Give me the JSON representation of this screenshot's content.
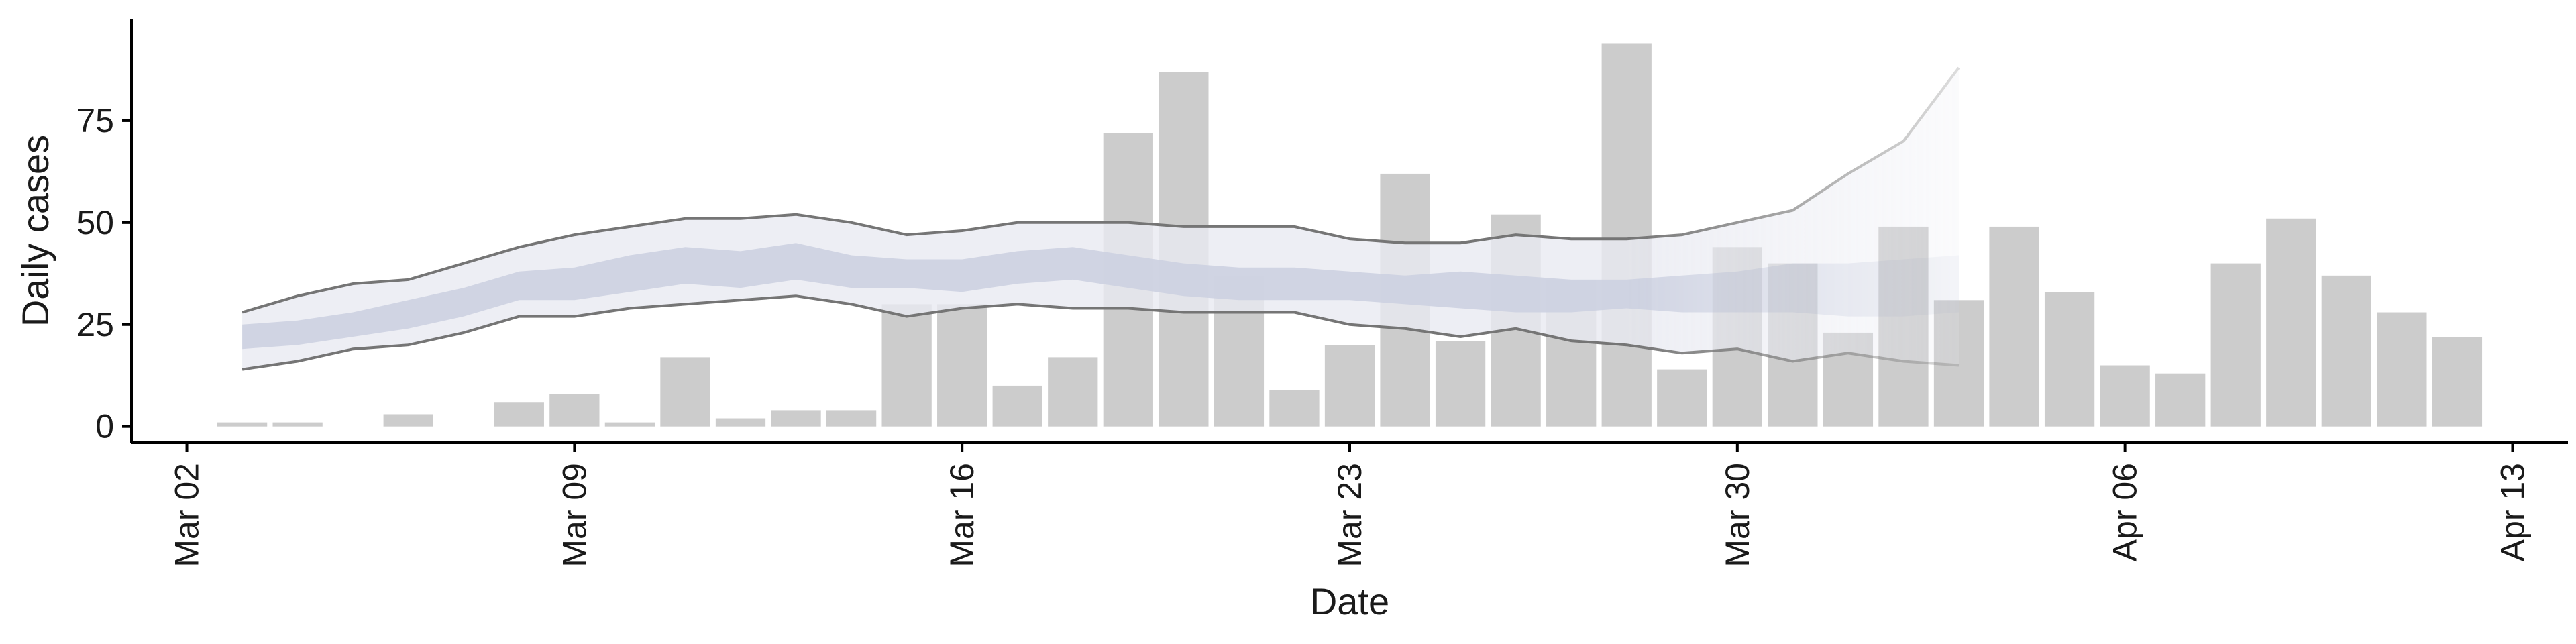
{
  "chart_data": {
    "type": "bar",
    "xlabel": "Date",
    "ylabel": "Daily cases",
    "x_ticks": [
      "Mar 02",
      "Mar 09",
      "Mar 16",
      "Mar 23",
      "Mar 30",
      "Apr 06",
      "Apr 13"
    ],
    "y_ticks": [
      0,
      25,
      50,
      75
    ],
    "ylim": [
      -4,
      100
    ],
    "xlim": [
      "2020-03-01",
      "2020-04-14"
    ],
    "grid": false,
    "legend": "none",
    "bars": {
      "dates": [
        "2020-03-03",
        "2020-03-04",
        "2020-03-05",
        "2020-03-06",
        "2020-03-07",
        "2020-03-08",
        "2020-03-09",
        "2020-03-10",
        "2020-03-11",
        "2020-03-12",
        "2020-03-13",
        "2020-03-14",
        "2020-03-15",
        "2020-03-16",
        "2020-03-17",
        "2020-03-18",
        "2020-03-19",
        "2020-03-20",
        "2020-03-21",
        "2020-03-22",
        "2020-03-23",
        "2020-03-24",
        "2020-03-25",
        "2020-03-26",
        "2020-03-27",
        "2020-03-28",
        "2020-03-29",
        "2020-03-30",
        "2020-03-31",
        "2020-04-01",
        "2020-04-02",
        "2020-04-03",
        "2020-04-04",
        "2020-04-05",
        "2020-04-06",
        "2020-04-07",
        "2020-04-08",
        "2020-04-09",
        "2020-04-10",
        "2020-04-11",
        "2020-04-12"
      ],
      "values": [
        1,
        1,
        0,
        3,
        0,
        6,
        8,
        1,
        17,
        2,
        4,
        4,
        30,
        30,
        10,
        17,
        72,
        87,
        37,
        9,
        20,
        62,
        21,
        52,
        36,
        94,
        14,
        44,
        40,
        23,
        49,
        31,
        49,
        33,
        15,
        13,
        40,
        51,
        37,
        28,
        22
      ]
    },
    "bands": {
      "dates": [
        "2020-03-03",
        "2020-03-04",
        "2020-03-05",
        "2020-03-06",
        "2020-03-07",
        "2020-03-08",
        "2020-03-09",
        "2020-03-10",
        "2020-03-11",
        "2020-03-12",
        "2020-03-13",
        "2020-03-14",
        "2020-03-15",
        "2020-03-16",
        "2020-03-17",
        "2020-03-18",
        "2020-03-19",
        "2020-03-20",
        "2020-03-21",
        "2020-03-22",
        "2020-03-23",
        "2020-03-24",
        "2020-03-25",
        "2020-03-26",
        "2020-03-27",
        "2020-03-28",
        "2020-03-29",
        "2020-03-30",
        "2020-03-31",
        "2020-04-01",
        "2020-04-02",
        "2020-04-03"
      ],
      "outer_lower": [
        14,
        16,
        19,
        20,
        23,
        27,
        27,
        29,
        30,
        31,
        32,
        30,
        27,
        29,
        30,
        29,
        29,
        28,
        28,
        28,
        25,
        24,
        22,
        24,
        21,
        20,
        18,
        19,
        16,
        18,
        16,
        15
      ],
      "outer_upper": [
        28,
        32,
        35,
        36,
        40,
        44,
        47,
        49,
        51,
        51,
        52,
        50,
        47,
        48,
        50,
        50,
        50,
        49,
        49,
        49,
        46,
        45,
        45,
        47,
        46,
        46,
        47,
        50,
        53,
        62,
        70,
        88
      ],
      "inner_lower": [
        19,
        20,
        22,
        24,
        27,
        31,
        31,
        33,
        35,
        34,
        36,
        34,
        34,
        33,
        35,
        36,
        34,
        32,
        31,
        31,
        31,
        30,
        29,
        28,
        28,
        29,
        28,
        28,
        28,
        27,
        27,
        28
      ],
      "inner_upper": [
        25,
        26,
        28,
        31,
        34,
        38,
        39,
        42,
        44,
        43,
        45,
        42,
        41,
        41,
        43,
        44,
        42,
        40,
        39,
        39,
        38,
        37,
        38,
        37,
        36,
        36,
        37,
        38,
        40,
        40,
        41,
        42
      ],
      "fade_start_date": "2020-03-28"
    },
    "colors": {
      "bar": "#cccccc",
      "outer_band": "#e9eaf1",
      "inner_band": "#cbd0e1",
      "band_line": "#757575",
      "axis": "#000000"
    }
  }
}
